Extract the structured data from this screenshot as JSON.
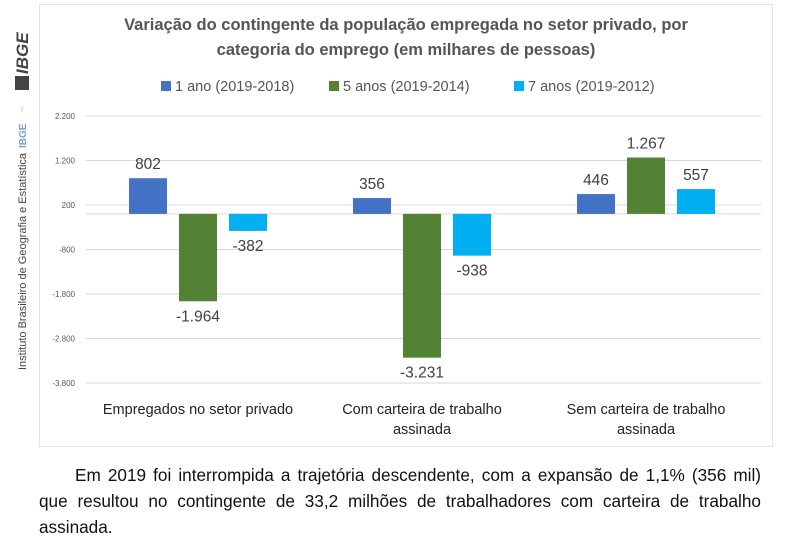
{
  "side": {
    "logo": "IBGE",
    "institute": "Instituto Brasileiro de Geografia e Estatística",
    "tag": "IBGE"
  },
  "chart_data": {
    "type": "bar",
    "title_line1": "Variação do contingente da população empregada no setor privado, por",
    "title_line2": "categoria do emprego (em milhares de pessoas)",
    "categories": [
      [
        "Empregados no setor privado"
      ],
      [
        "Com carteira de trabalho",
        "assinada"
      ],
      [
        "Sem carteira de trabalho",
        "assinada"
      ]
    ],
    "series": [
      {
        "name": "1 ano (2019-2018)",
        "color": "#4472C4",
        "values": [
          802,
          356,
          446
        ],
        "labels": [
          "802",
          "356",
          "446"
        ]
      },
      {
        "name": "5 anos (2019-2014)",
        "color": "#548235",
        "values": [
          -1964,
          -3231,
          1267
        ],
        "labels": [
          "-1.964",
          "-3.231",
          "1.267"
        ]
      },
      {
        "name": "7 anos  (2019-2012)",
        "color": "#00B0F0",
        "values": [
          -382,
          -938,
          557
        ],
        "labels": [
          "-382",
          "-938",
          "557"
        ]
      }
    ],
    "yticks": [
      2200,
      1200,
      200,
      -800,
      -1800,
      -2800,
      -3800
    ],
    "ytick_labels": [
      "2.200",
      "1.200",
      "200",
      "-800",
      "-1.800",
      "-2.800",
      "-3.800"
    ],
    "ylim": [
      -3800,
      2200
    ],
    "grid": true,
    "legend": "top"
  },
  "paragraph": "Em 2019 foi interrompida a trajetória descendente, com a expansão de 1,1% (356 mil) que resultou no contingente de 33,2 milhões de trabalhadores com carteira de trabalho assinada."
}
